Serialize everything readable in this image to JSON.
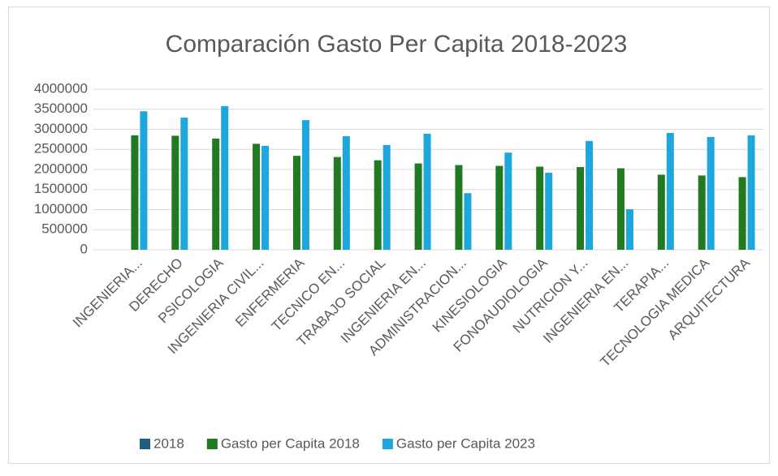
{
  "chart_data": {
    "type": "bar",
    "title": "Comparación Gasto Per Capita 2018-2023",
    "categories": [
      "INGENIERIA...",
      "DERECHO",
      "PSICOLOGIA",
      "INGENIERIA CIVIL...",
      "ENFERMERIA",
      "TECNICO EN...",
      "TRABAJO SOCIAL",
      "INGENIERIA EN...",
      "ADMINISTRACION...",
      "KINESIOLOGIA",
      "FONOAUDIOLOGIA",
      "NUTRICION Y...",
      "INGENIERIA EN...",
      "TERAPIA...",
      "TECNOLOGIA MEDICA",
      "ARQUITECTURA"
    ],
    "series": [
      {
        "name": "2018",
        "color": "#1f5f80",
        "values": [
          null,
          null,
          null,
          null,
          null,
          null,
          null,
          null,
          null,
          null,
          null,
          null,
          null,
          null,
          null,
          null
        ]
      },
      {
        "name": "Gasto per Capita 2018",
        "color": "#217a21",
        "values": [
          2850000,
          2840000,
          2770000,
          2640000,
          2340000,
          2310000,
          2230000,
          2150000,
          2110000,
          2090000,
          2070000,
          2060000,
          2030000,
          1870000,
          1850000,
          1810000
        ]
      },
      {
        "name": "Gasto per Capita 2023",
        "color": "#1ea7dc",
        "values": [
          3450000,
          3290000,
          3580000,
          2590000,
          3230000,
          2830000,
          2610000,
          2890000,
          1410000,
          2420000,
          1920000,
          2710000,
          1010000,
          2910000,
          2810000,
          2850000
        ]
      }
    ],
    "ylim": [
      0,
      4000000
    ],
    "yticks": [
      0,
      500000,
      1000000,
      1500000,
      2000000,
      2500000,
      3000000,
      3500000,
      4000000
    ],
    "grid": true,
    "legend": "bottom"
  }
}
